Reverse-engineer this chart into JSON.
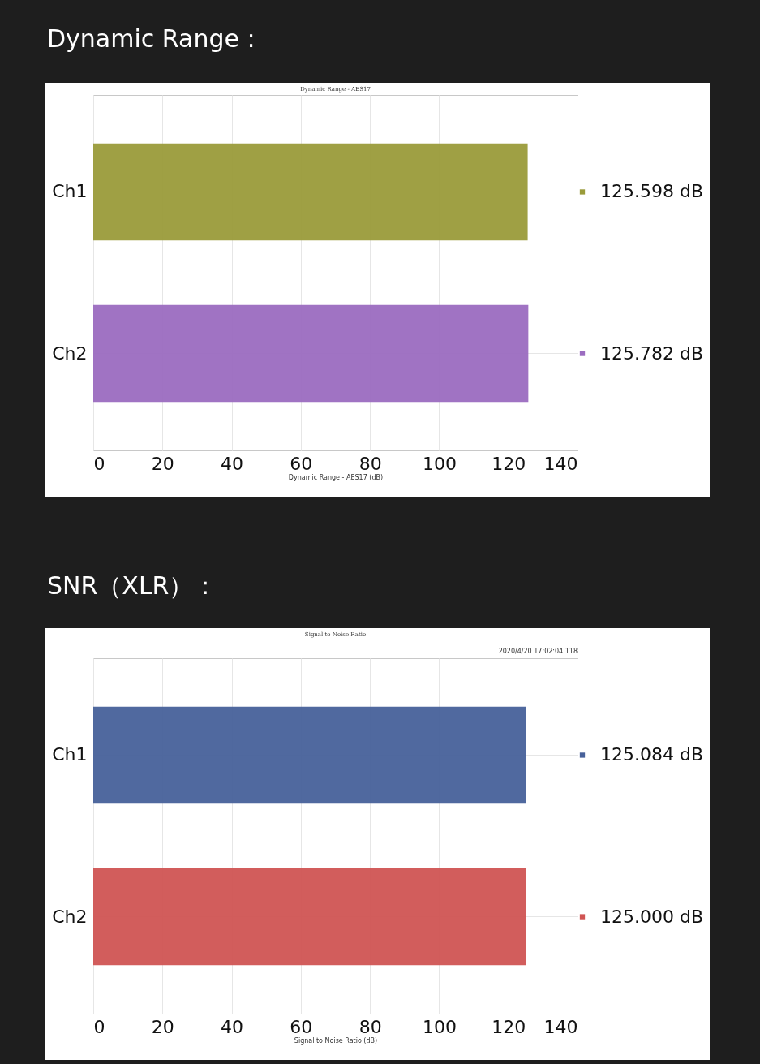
{
  "chart_data": [
    {
      "type": "bar",
      "orientation": "horizontal",
      "title": "Dynamic Range :",
      "subtitle": "Dynamic Range - AES17",
      "xlabel": "Dynamic Range - AES17 (dB)",
      "categories": [
        "Ch1",
        "Ch2"
      ],
      "values": [
        125.598,
        125.782
      ],
      "colors": [
        "#9a9b3a",
        "#9b6cc0"
      ],
      "value_labels": [
        "125.598 dB",
        "125.782 dB"
      ],
      "xlim": [
        0,
        140
      ],
      "xticks": [
        0,
        20,
        40,
        60,
        80,
        100,
        120,
        140
      ],
      "grid": "x"
    },
    {
      "type": "bar",
      "orientation": "horizontal",
      "title": "SNR（XLR）：",
      "subtitle": "Signal to Noise Ratio",
      "xlabel": "Signal to Noise Ratio (dB)",
      "annotations": [
        "2020/4/20 17:02:04.118"
      ],
      "categories": [
        "Ch1",
        "Ch2"
      ],
      "values": [
        125.084,
        125.0
      ],
      "colors": [
        "#47619a",
        "#d05453"
      ],
      "value_labels": [
        "125.084 dB",
        "125.000 dB"
      ],
      "xlim": [
        0,
        140
      ],
      "xticks": [
        0,
        20,
        40,
        60,
        80,
        100,
        120,
        140
      ],
      "grid": "x"
    }
  ]
}
